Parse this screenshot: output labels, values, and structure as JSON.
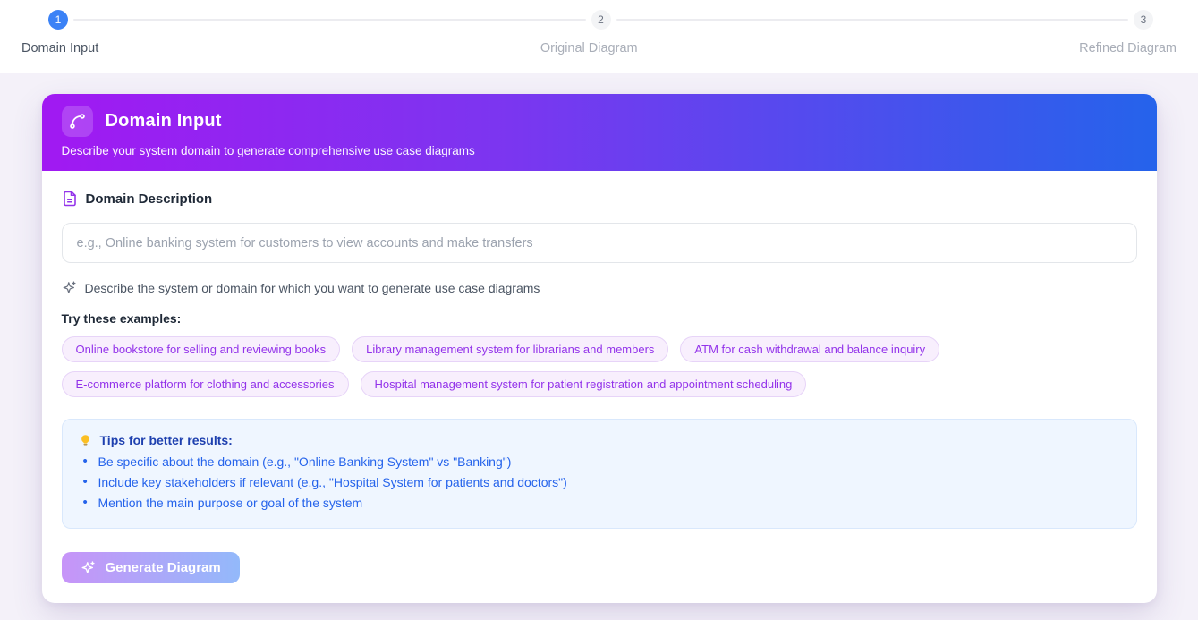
{
  "stepper": {
    "steps": [
      {
        "number": "1",
        "label": "Domain Input",
        "state": "active"
      },
      {
        "number": "2",
        "label": "Original Diagram",
        "state": "inactive"
      },
      {
        "number": "3",
        "label": "Refined Diagram",
        "state": "inactive"
      }
    ]
  },
  "card": {
    "header": {
      "icon": "spline-branch-icon",
      "title": "Domain Input",
      "subtitle": "Describe your system domain to generate comprehensive use case diagrams"
    },
    "form": {
      "label_icon": "file-text-icon",
      "label": "Domain Description",
      "input_value": "",
      "input_placeholder": "e.g., Online banking system for customers to view accounts and make transfers",
      "hint_icon": "sparkles-icon",
      "hint": "Describe the system or domain for which you want to generate use case diagrams"
    },
    "examples": {
      "heading": "Try these examples:",
      "items": [
        "Online bookstore for selling and reviewing books",
        "Library management system for librarians and members",
        "ATM for cash withdrawal and balance inquiry",
        "E-commerce platform for clothing and accessories",
        "Hospital management system for patient registration and appointment scheduling"
      ]
    },
    "tips": {
      "icon": "lightbulb-icon",
      "heading": "Tips for better results:",
      "items": [
        "Be specific about the domain (e.g., \"Online Banking System\" vs \"Banking\")",
        "Include key stakeholders if relevant (e.g., \"Hospital System for patients and doctors\")",
        "Mention the main purpose or goal of the system"
      ]
    },
    "generate_button": {
      "icon": "sparkles-icon",
      "label": "Generate Diagram"
    }
  },
  "colors": {
    "page_background": "#f4f1f9",
    "stepper_active_circle": "#3b82f6",
    "header_gradient_start": "#a119f2",
    "header_gradient_end": "#2563eb",
    "pill_text": "#9333ea",
    "pill_background": "#f8effd",
    "tips_background": "#eff6ff",
    "tips_heading_text": "#1e40af",
    "tips_item_text": "#2563eb",
    "button_gradient_start": "#c794f8",
    "button_gradient_end": "#93b9fa"
  }
}
